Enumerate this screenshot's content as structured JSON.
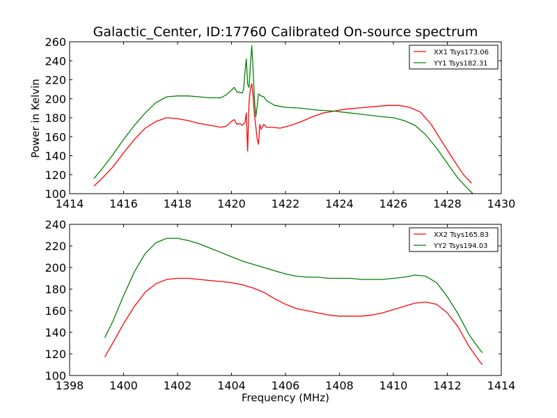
{
  "chart_data": [
    {
      "type": "line",
      "title": "Galactic_Center, ID:17760 Calibrated On-source spectrum",
      "xlabel": "",
      "ylabel": "Power in Kelvin",
      "xlim": [
        1414,
        1430
      ],
      "ylim": [
        100,
        260
      ],
      "xticks": [
        "1414",
        "1416",
        "1418",
        "1420",
        "1422",
        "1424",
        "1426",
        "1428",
        "1430"
      ],
      "yticks": [
        "100",
        "120",
        "140",
        "160",
        "180",
        "200",
        "220",
        "240",
        "260"
      ],
      "legend_position": "top-right",
      "grid": false,
      "series": [
        {
          "name": "XX1 Tsys173.06",
          "color": "#ff0000",
          "points": [
            [
              1414.9,
              108
            ],
            [
              1415.2,
              116
            ],
            [
              1415.6,
              128
            ],
            [
              1416.0,
              143
            ],
            [
              1416.4,
              157
            ],
            [
              1416.8,
              169
            ],
            [
              1417.2,
              176
            ],
            [
              1417.6,
              180
            ],
            [
              1418.0,
              179
            ],
            [
              1418.4,
              177
            ],
            [
              1418.8,
              174
            ],
            [
              1419.2,
              172
            ],
            [
              1419.6,
              170
            ],
            [
              1419.8,
              171
            ],
            [
              1420.0,
              176
            ],
            [
              1420.1,
              178
            ],
            [
              1420.2,
              173
            ],
            [
              1420.3,
              174
            ],
            [
              1420.4,
              172
            ],
            [
              1420.5,
              175
            ],
            [
              1420.55,
              185
            ],
            [
              1420.6,
              145
            ],
            [
              1420.65,
              196
            ],
            [
              1420.7,
              210
            ],
            [
              1420.75,
              216
            ],
            [
              1420.8,
              203
            ],
            [
              1420.85,
              183
            ],
            [
              1420.9,
              171
            ],
            [
              1420.95,
              158
            ],
            [
              1421.0,
              152
            ],
            [
              1421.05,
              173
            ],
            [
              1421.1,
              168
            ],
            [
              1421.2,
              173
            ],
            [
              1421.3,
              170
            ],
            [
              1421.5,
              170
            ],
            [
              1421.8,
              169
            ],
            [
              1422.2,
              172
            ],
            [
              1422.6,
              176
            ],
            [
              1423.0,
              181
            ],
            [
              1423.4,
              185
            ],
            [
              1423.8,
              187
            ],
            [
              1424.2,
              189
            ],
            [
              1424.6,
              190
            ],
            [
              1425.0,
              191
            ],
            [
              1425.4,
              192
            ],
            [
              1425.8,
              193
            ],
            [
              1426.2,
              193
            ],
            [
              1426.6,
              191
            ],
            [
              1427.0,
              186
            ],
            [
              1427.4,
              173
            ],
            [
              1427.8,
              155
            ],
            [
              1428.2,
              137
            ],
            [
              1428.6,
              120
            ],
            [
              1428.9,
              111
            ]
          ]
        },
        {
          "name": "YY1 Tsys182.31",
          "color": "#008000",
          "points": [
            [
              1414.9,
              116
            ],
            [
              1415.2,
              126
            ],
            [
              1415.6,
              141
            ],
            [
              1416.0,
              157
            ],
            [
              1416.4,
              172
            ],
            [
              1416.8,
              185
            ],
            [
              1417.2,
              196
            ],
            [
              1417.6,
              202
            ],
            [
              1418.0,
              203
            ],
            [
              1418.4,
              203
            ],
            [
              1418.8,
              202
            ],
            [
              1419.2,
              201
            ],
            [
              1419.6,
              201
            ],
            [
              1419.8,
              204
            ],
            [
              1420.0,
              209
            ],
            [
              1420.1,
              212
            ],
            [
              1420.2,
              207
            ],
            [
              1420.3,
              207
            ],
            [
              1420.4,
              206
            ],
            [
              1420.45,
              210
            ],
            [
              1420.5,
              228
            ],
            [
              1420.55,
              242
            ],
            [
              1420.6,
              215
            ],
            [
              1420.65,
              212
            ],
            [
              1420.7,
              235
            ],
            [
              1420.75,
              256
            ],
            [
              1420.8,
              232
            ],
            [
              1420.85,
              200
            ],
            [
              1420.9,
              181
            ],
            [
              1420.95,
              192
            ],
            [
              1421.0,
              205
            ],
            [
              1421.1,
              203
            ],
            [
              1421.2,
              202
            ],
            [
              1421.3,
              198
            ],
            [
              1421.6,
              193
            ],
            [
              1422.0,
              191
            ],
            [
              1422.6,
              190
            ],
            [
              1423.2,
              188
            ],
            [
              1423.8,
              187
            ],
            [
              1424.4,
              185
            ],
            [
              1425.0,
              183
            ],
            [
              1425.6,
              181
            ],
            [
              1426.0,
              180
            ],
            [
              1426.4,
              177
            ],
            [
              1426.8,
              172
            ],
            [
              1427.2,
              162
            ],
            [
              1427.6,
              148
            ],
            [
              1428.0,
              132
            ],
            [
              1428.4,
              116
            ],
            [
              1428.8,
              104
            ],
            [
              1428.95,
              100
            ]
          ]
        }
      ]
    },
    {
      "type": "line",
      "title": "",
      "xlabel": "Frequency (MHz)",
      "ylabel": "",
      "xlim": [
        1398,
        1414
      ],
      "ylim": [
        100,
        240
      ],
      "xticks": [
        "1398",
        "1400",
        "1402",
        "1404",
        "1406",
        "1408",
        "1410",
        "1412",
        "1414"
      ],
      "yticks": [
        "100",
        "120",
        "140",
        "160",
        "180",
        "200",
        "220",
        "240"
      ],
      "legend_position": "top-right",
      "grid": false,
      "series": [
        {
          "name": "XX2 Tsys165.83",
          "color": "#ff0000",
          "points": [
            [
              1399.3,
              117
            ],
            [
              1399.6,
              130
            ],
            [
              1400.0,
              148
            ],
            [
              1400.4,
              164
            ],
            [
              1400.8,
              177
            ],
            [
              1401.2,
              185
            ],
            [
              1401.6,
              189
            ],
            [
              1402.0,
              190
            ],
            [
              1402.4,
              190
            ],
            [
              1402.8,
              189
            ],
            [
              1403.2,
              188
            ],
            [
              1403.6,
              187
            ],
            [
              1404.0,
              186
            ],
            [
              1404.4,
              184
            ],
            [
              1404.8,
              181
            ],
            [
              1405.2,
              177
            ],
            [
              1405.6,
              171
            ],
            [
              1406.0,
              166
            ],
            [
              1406.4,
              162
            ],
            [
              1406.8,
              160
            ],
            [
              1407.2,
              158
            ],
            [
              1407.6,
              156
            ],
            [
              1408.0,
              155
            ],
            [
              1408.4,
              155
            ],
            [
              1408.8,
              155
            ],
            [
              1409.2,
              156
            ],
            [
              1409.6,
              158
            ],
            [
              1410.0,
              161
            ],
            [
              1410.4,
              164
            ],
            [
              1410.8,
              167
            ],
            [
              1411.2,
              168
            ],
            [
              1411.6,
              166
            ],
            [
              1412.0,
              158
            ],
            [
              1412.4,
              145
            ],
            [
              1412.8,
              127
            ],
            [
              1413.2,
              113
            ],
            [
              1413.3,
              110
            ]
          ]
        },
        {
          "name": "YY2 Tsys194.03",
          "color": "#008000",
          "points": [
            [
              1399.3,
              135
            ],
            [
              1399.6,
              150
            ],
            [
              1400.0,
              174
            ],
            [
              1400.4,
              196
            ],
            [
              1400.8,
              213
            ],
            [
              1401.2,
              223
            ],
            [
              1401.6,
              227
            ],
            [
              1402.0,
              227
            ],
            [
              1402.4,
              225
            ],
            [
              1402.8,
              222
            ],
            [
              1403.2,
              218
            ],
            [
              1403.6,
              214
            ],
            [
              1404.0,
              210
            ],
            [
              1404.4,
              206
            ],
            [
              1404.8,
              203
            ],
            [
              1405.2,
              200
            ],
            [
              1405.6,
              197
            ],
            [
              1406.0,
              194
            ],
            [
              1406.4,
              192
            ],
            [
              1406.8,
              191
            ],
            [
              1407.2,
              191
            ],
            [
              1407.6,
              190
            ],
            [
              1408.0,
              190
            ],
            [
              1408.4,
              190
            ],
            [
              1408.8,
              189
            ],
            [
              1409.2,
              189
            ],
            [
              1409.6,
              189
            ],
            [
              1410.0,
              190
            ],
            [
              1410.4,
              191
            ],
            [
              1410.8,
              193
            ],
            [
              1411.2,
              192
            ],
            [
              1411.6,
              186
            ],
            [
              1412.0,
              173
            ],
            [
              1412.4,
              157
            ],
            [
              1412.8,
              138
            ],
            [
              1413.2,
              124
            ],
            [
              1413.3,
              121
            ]
          ]
        }
      ]
    }
  ]
}
